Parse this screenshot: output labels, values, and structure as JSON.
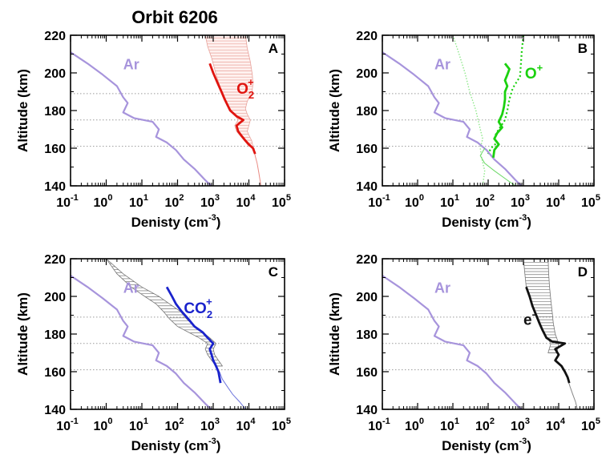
{
  "figure_title": "Orbit 6206",
  "chart_data": [
    {
      "panel": "A",
      "type": "line",
      "xlabel": "Denisty (cm",
      "xlabel_sup": "-3",
      "xlabel_end": ")",
      "ylabel": "Altitude (km)",
      "xscale": "log",
      "xlim": [
        0.1,
        100000
      ],
      "ylim": [
        140,
        220
      ],
      "x_ticks": [
        {
          "base": "10",
          "exp": "-1"
        },
        {
          "base": "10",
          "exp": "0"
        },
        {
          "base": "10",
          "exp": "1"
        },
        {
          "base": "10",
          "exp": "2"
        },
        {
          "base": "10",
          "exp": "3"
        },
        {
          "base": "10",
          "exp": "4"
        },
        {
          "base": "10",
          "exp": "5"
        }
      ],
      "y_ticks": [
        "140",
        "160",
        "180",
        "200",
        "220"
      ],
      "ref_lines": [
        161,
        175,
        189
      ],
      "ar_label": "Ar",
      "ion_label": "O",
      "ion_sub": "2",
      "ion_sup": "+",
      "ion_color": "#e0140f",
      "ar_series": [
        [
          0.1,
          211
        ],
        [
          0.3,
          205
        ],
        [
          0.8,
          199
        ],
        [
          2,
          193
        ],
        [
          3,
          187
        ],
        [
          4,
          184
        ],
        [
          3,
          179
        ],
        [
          6,
          176
        ],
        [
          20,
          174
        ],
        [
          30,
          170
        ],
        [
          25,
          166
        ],
        [
          50,
          163
        ],
        [
          90,
          159
        ],
        [
          150,
          154
        ],
        [
          300,
          149
        ],
        [
          600,
          143
        ],
        [
          1000,
          139
        ]
      ],
      "measured": [
        [
          800,
          205
        ],
        [
          1000,
          200
        ],
        [
          1300,
          195
        ],
        [
          1700,
          190
        ],
        [
          2100,
          186
        ],
        [
          2500,
          183
        ],
        [
          3000,
          180
        ],
        [
          4500,
          177
        ],
        [
          7000,
          175
        ],
        [
          4500,
          172
        ],
        [
          5000,
          169
        ],
        [
          6000,
          167
        ],
        [
          8000,
          164
        ],
        [
          10000,
          162
        ],
        [
          13000,
          160
        ],
        [
          15000,
          157
        ]
      ],
      "model": [
        [
          14000,
          160
        ],
        [
          15000,
          156
        ],
        [
          17000,
          152
        ],
        [
          19000,
          147
        ],
        [
          21000,
          142
        ],
        [
          22000,
          139
        ]
      ],
      "band_upper": [
        [
          8000,
          220
        ],
        [
          9000,
          213
        ],
        [
          11000,
          206
        ],
        [
          12500,
          199
        ],
        [
          13000,
          194
        ],
        [
          12000,
          189
        ],
        [
          9000,
          185
        ],
        [
          8000,
          181
        ],
        [
          9000,
          178
        ],
        [
          11000,
          175
        ],
        [
          10000,
          172
        ],
        [
          9000,
          169
        ],
        [
          10000,
          167
        ],
        [
          12000,
          164
        ],
        [
          13000,
          161
        ]
      ],
      "band_lower": [
        [
          600,
          220
        ],
        [
          700,
          214
        ],
        [
          900,
          208
        ],
        [
          1100,
          202
        ],
        [
          1300,
          197
        ],
        [
          1600,
          192
        ],
        [
          2000,
          188
        ],
        [
          2400,
          184
        ],
        [
          3000,
          181
        ],
        [
          4000,
          178
        ],
        [
          5000,
          175
        ],
        [
          4000,
          172
        ],
        [
          4500,
          169
        ],
        [
          5500,
          167
        ],
        [
          7500,
          164
        ],
        [
          10000,
          161
        ]
      ]
    },
    {
      "panel": "B",
      "type": "line",
      "xlabel": "Denisty (cm",
      "xlabel_sup": "-3",
      "xlabel_end": ")",
      "ylabel": "Altitude (km)",
      "xscale": "log",
      "xlim": [
        0.1,
        100000
      ],
      "ylim": [
        140,
        220
      ],
      "x_ticks": [
        {
          "base": "10",
          "exp": "-1"
        },
        {
          "base": "10",
          "exp": "0"
        },
        {
          "base": "10",
          "exp": "1"
        },
        {
          "base": "10",
          "exp": "2"
        },
        {
          "base": "10",
          "exp": "3"
        },
        {
          "base": "10",
          "exp": "4"
        },
        {
          "base": "10",
          "exp": "5"
        }
      ],
      "y_ticks": [
        "140",
        "160",
        "180",
        "200",
        "220"
      ],
      "ref_lines": [
        161,
        175,
        189
      ],
      "ar_label": "Ar",
      "ion_label": "O",
      "ion_sub": "",
      "ion_sup": "+",
      "ion_color": "#1bd10f",
      "ar_series": [
        [
          0.1,
          211
        ],
        [
          0.3,
          205
        ],
        [
          0.8,
          199
        ],
        [
          2,
          193
        ],
        [
          3,
          187
        ],
        [
          4,
          184
        ],
        [
          3,
          179
        ],
        [
          6,
          176
        ],
        [
          20,
          174
        ],
        [
          30,
          170
        ],
        [
          25,
          166
        ],
        [
          50,
          163
        ],
        [
          90,
          159
        ],
        [
          150,
          154
        ],
        [
          300,
          149
        ],
        [
          600,
          143
        ],
        [
          1000,
          139
        ]
      ],
      "measured": [
        [
          300,
          205
        ],
        [
          400,
          202
        ],
        [
          350,
          199
        ],
        [
          300,
          196
        ],
        [
          350,
          193
        ],
        [
          300,
          190
        ],
        [
          300,
          186
        ],
        [
          280,
          182
        ],
        [
          250,
          178
        ],
        [
          200,
          174
        ],
        [
          250,
          171
        ],
        [
          180,
          168
        ],
        [
          150,
          165
        ],
        [
          200,
          162
        ],
        [
          150,
          159
        ],
        [
          140,
          155
        ]
      ],
      "dotted_lines": [
        [
          [
            1000,
            220
          ],
          [
            900,
            212
          ],
          [
            850,
            205
          ],
          [
            800,
            198
          ],
          [
            500,
            192
          ],
          [
            400,
            186
          ],
          [
            350,
            180
          ],
          [
            300,
            175
          ],
          [
            200,
            170
          ],
          [
            150,
            166
          ],
          [
            180,
            163
          ],
          [
            120,
            160
          ],
          [
            100,
            157
          ]
        ],
        [
          [
            10,
            220
          ],
          [
            15,
            210
          ],
          [
            22,
            200
          ],
          [
            30,
            190
          ],
          [
            45,
            180
          ],
          [
            60,
            170
          ],
          [
            70,
            165
          ],
          [
            60,
            160
          ],
          [
            65,
            155
          ],
          [
            80,
            148
          ],
          [
            70,
            140
          ]
        ]
      ],
      "thin_line": [
        [
          80,
          160
        ],
        [
          60,
          156
        ],
        [
          80,
          152
        ],
        [
          150,
          148
        ],
        [
          350,
          143
        ],
        [
          700,
          139
        ]
      ]
    },
    {
      "panel": "C",
      "type": "line",
      "xlabel": "Denisty (cm",
      "xlabel_sup": "-3",
      "xlabel_end": ")",
      "ylabel": "Altitude (km)",
      "xscale": "log",
      "xlim": [
        0.1,
        100000
      ],
      "ylim": [
        140,
        220
      ],
      "x_ticks": [
        {
          "base": "10",
          "exp": "-1"
        },
        {
          "base": "10",
          "exp": "0"
        },
        {
          "base": "10",
          "exp": "1"
        },
        {
          "base": "10",
          "exp": "2"
        },
        {
          "base": "10",
          "exp": "3"
        },
        {
          "base": "10",
          "exp": "4"
        },
        {
          "base": "10",
          "exp": "5"
        }
      ],
      "y_ticks": [
        "140",
        "160",
        "180",
        "200",
        "220"
      ],
      "ref_lines": [
        161,
        175,
        189
      ],
      "ar_label": "Ar",
      "ion_label": "CO",
      "ion_sub": "2",
      "ion_sup": "+",
      "ion_color": "#1a23cc",
      "ar_series": [
        [
          0.1,
          211
        ],
        [
          0.3,
          205
        ],
        [
          0.8,
          199
        ],
        [
          2,
          193
        ],
        [
          3,
          187
        ],
        [
          4,
          184
        ],
        [
          3,
          179
        ],
        [
          6,
          176
        ],
        [
          20,
          174
        ],
        [
          30,
          170
        ],
        [
          25,
          166
        ],
        [
          50,
          163
        ],
        [
          90,
          159
        ],
        [
          150,
          154
        ],
        [
          300,
          149
        ],
        [
          600,
          143
        ],
        [
          1000,
          139
        ]
      ],
      "measured": [
        [
          50,
          205
        ],
        [
          70,
          200
        ],
        [
          90,
          196
        ],
        [
          130,
          192
        ],
        [
          200,
          188
        ],
        [
          300,
          184
        ],
        [
          500,
          181
        ],
        [
          700,
          178
        ],
        [
          1000,
          175
        ],
        [
          800,
          172
        ],
        [
          900,
          169
        ],
        [
          1000,
          166
        ],
        [
          1200,
          163
        ],
        [
          1400,
          160
        ],
        [
          1500,
          157
        ],
        [
          1600,
          154
        ]
      ],
      "model": [
        [
          1500,
          160
        ],
        [
          1800,
          156
        ],
        [
          2500,
          152
        ],
        [
          3500,
          148
        ],
        [
          5500,
          144
        ],
        [
          9000,
          139
        ]
      ],
      "band_upper": [
        [
          1,
          220
        ],
        [
          3,
          212
        ],
        [
          10,
          205
        ],
        [
          30,
          200
        ],
        [
          60,
          196
        ],
        [
          120,
          192
        ],
        [
          180,
          188
        ],
        [
          300,
          184
        ],
        [
          500,
          181
        ],
        [
          800,
          178
        ],
        [
          1200,
          175
        ],
        [
          1000,
          172
        ],
        [
          1100,
          169
        ],
        [
          1400,
          166
        ],
        [
          1800,
          163
        ]
      ],
      "band_lower": [
        [
          1,
          220
        ],
        [
          2,
          212
        ],
        [
          5,
          205
        ],
        [
          12,
          200
        ],
        [
          25,
          196
        ],
        [
          40,
          192
        ],
        [
          60,
          188
        ],
        [
          100,
          184
        ],
        [
          200,
          181
        ],
        [
          400,
          178
        ],
        [
          700,
          175
        ],
        [
          600,
          172
        ],
        [
          700,
          169
        ],
        [
          900,
          166
        ],
        [
          1200,
          163
        ]
      ]
    },
    {
      "panel": "D",
      "type": "line",
      "xlabel": "Denisty (cm",
      "xlabel_sup": "-3",
      "xlabel_end": ")",
      "ylabel": "Altitude (km)",
      "xscale": "log",
      "xlim": [
        0.1,
        100000
      ],
      "ylim": [
        140,
        220
      ],
      "x_ticks": [
        {
          "base": "10",
          "exp": "-1"
        },
        {
          "base": "10",
          "exp": "0"
        },
        {
          "base": "10",
          "exp": "1"
        },
        {
          "base": "10",
          "exp": "2"
        },
        {
          "base": "10",
          "exp": "3"
        },
        {
          "base": "10",
          "exp": "4"
        },
        {
          "base": "10",
          "exp": "5"
        }
      ],
      "y_ticks": [
        "140",
        "160",
        "180",
        "200",
        "220"
      ],
      "ref_lines": [
        161,
        175,
        189
      ],
      "ar_label": "Ar",
      "ion_label": "e",
      "ion_sub": "",
      "ion_sup": "-",
      "ion_color": "#111111",
      "ar_series": [
        [
          0.1,
          211
        ],
        [
          0.3,
          205
        ],
        [
          0.8,
          199
        ],
        [
          2,
          193
        ],
        [
          3,
          187
        ],
        [
          4,
          184
        ],
        [
          3,
          179
        ],
        [
          6,
          176
        ],
        [
          20,
          174
        ],
        [
          30,
          170
        ],
        [
          25,
          166
        ],
        [
          50,
          163
        ],
        [
          90,
          159
        ],
        [
          150,
          154
        ],
        [
          300,
          149
        ],
        [
          600,
          143
        ],
        [
          1000,
          139
        ]
      ],
      "measured": [
        [
          1200,
          205
        ],
        [
          1500,
          200
        ],
        [
          1800,
          195
        ],
        [
          2300,
          190
        ],
        [
          2800,
          186
        ],
        [
          3500,
          182
        ],
        [
          4500,
          178
        ],
        [
          6500,
          176
        ],
        [
          15000,
          175
        ],
        [
          8000,
          172
        ],
        [
          10000,
          169
        ],
        [
          8000,
          166
        ],
        [
          12000,
          163
        ],
        [
          15000,
          160
        ],
        [
          18000,
          157
        ],
        [
          20000,
          154
        ]
      ],
      "model": [
        [
          15000,
          160
        ],
        [
          18000,
          156
        ],
        [
          21000,
          152
        ],
        [
          25000,
          148
        ],
        [
          30000,
          144
        ],
        [
          35000,
          139
        ]
      ],
      "band_upper": [
        [
          5000,
          220
        ],
        [
          5200,
          212
        ],
        [
          5500,
          205
        ],
        [
          6000,
          198
        ],
        [
          6500,
          192
        ],
        [
          7000,
          186
        ],
        [
          8000,
          180
        ],
        [
          10000,
          175
        ],
        [
          9000,
          170
        ]
      ],
      "band_lower": [
        [
          1000,
          220
        ],
        [
          1100,
          212
        ],
        [
          1200,
          205
        ],
        [
          1600,
          198
        ],
        [
          2200,
          192
        ],
        [
          3000,
          186
        ],
        [
          4000,
          180
        ],
        [
          6000,
          175
        ],
        [
          5000,
          170
        ]
      ]
    }
  ]
}
